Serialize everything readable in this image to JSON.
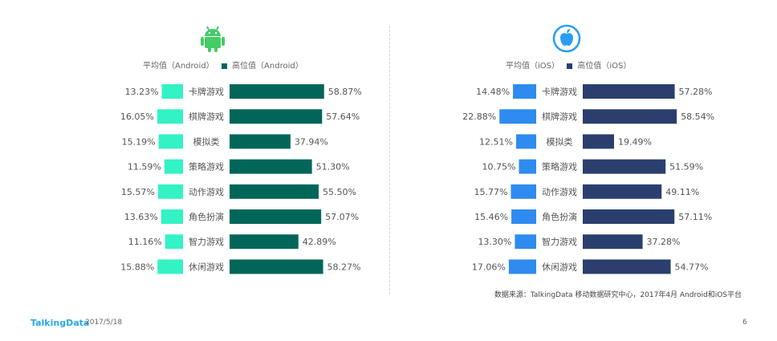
{
  "colors": {
    "android_avg": "#33f2c4",
    "android_high": "#00665a",
    "ios_avg": "#2f8bef",
    "ios_high": "#2a3f6e",
    "android_icon": "#44cc66",
    "ios_icon": "#2a9df4"
  },
  "icons": {
    "android": "android-logo-icon",
    "ios": "apple-logo-icon"
  },
  "source_text": "数据来源：TalkingData 移动数据研究中心，2017年4月 Android和iOS平台",
  "footer": {
    "logo": "TalkingData",
    "date": "2017/5/18",
    "page": "6"
  },
  "chart_data": [
    {
      "type": "bar",
      "platform": "Android",
      "legend_avg": "平均值（Android）",
      "legend_high": "高位值（Android）",
      "categories": [
        "卡牌游戏",
        "棋牌游戏",
        "模拟类",
        "策略游戏",
        "动作游戏",
        "角色扮演",
        "智力游戏",
        "休闲游戏"
      ],
      "series": [
        {
          "name": "平均值（Android）",
          "values": [
            13.23,
            16.05,
            15.19,
            11.59,
            15.57,
            13.63,
            11.16,
            15.88
          ]
        },
        {
          "name": "高位值（Android）",
          "values": [
            58.87,
            57.64,
            37.94,
            51.3,
            55.5,
            57.07,
            42.89,
            58.27
          ]
        }
      ],
      "unit": "%"
    },
    {
      "type": "bar",
      "platform": "iOS",
      "legend_avg": "平均值（iOS）",
      "legend_high": "高位值（iOS）",
      "categories": [
        "卡牌游戏",
        "棋牌游戏",
        "模拟类",
        "策略游戏",
        "动作游戏",
        "角色扮演",
        "智力游戏",
        "休闲游戏"
      ],
      "series": [
        {
          "name": "平均值（iOS）",
          "values": [
            14.48,
            22.88,
            12.51,
            10.75,
            15.77,
            15.46,
            13.3,
            17.06
          ]
        },
        {
          "name": "高位值（iOS）",
          "values": [
            57.28,
            58.54,
            19.49,
            51.59,
            49.11,
            57.11,
            37.28,
            54.77
          ]
        }
      ],
      "unit": "%"
    }
  ]
}
